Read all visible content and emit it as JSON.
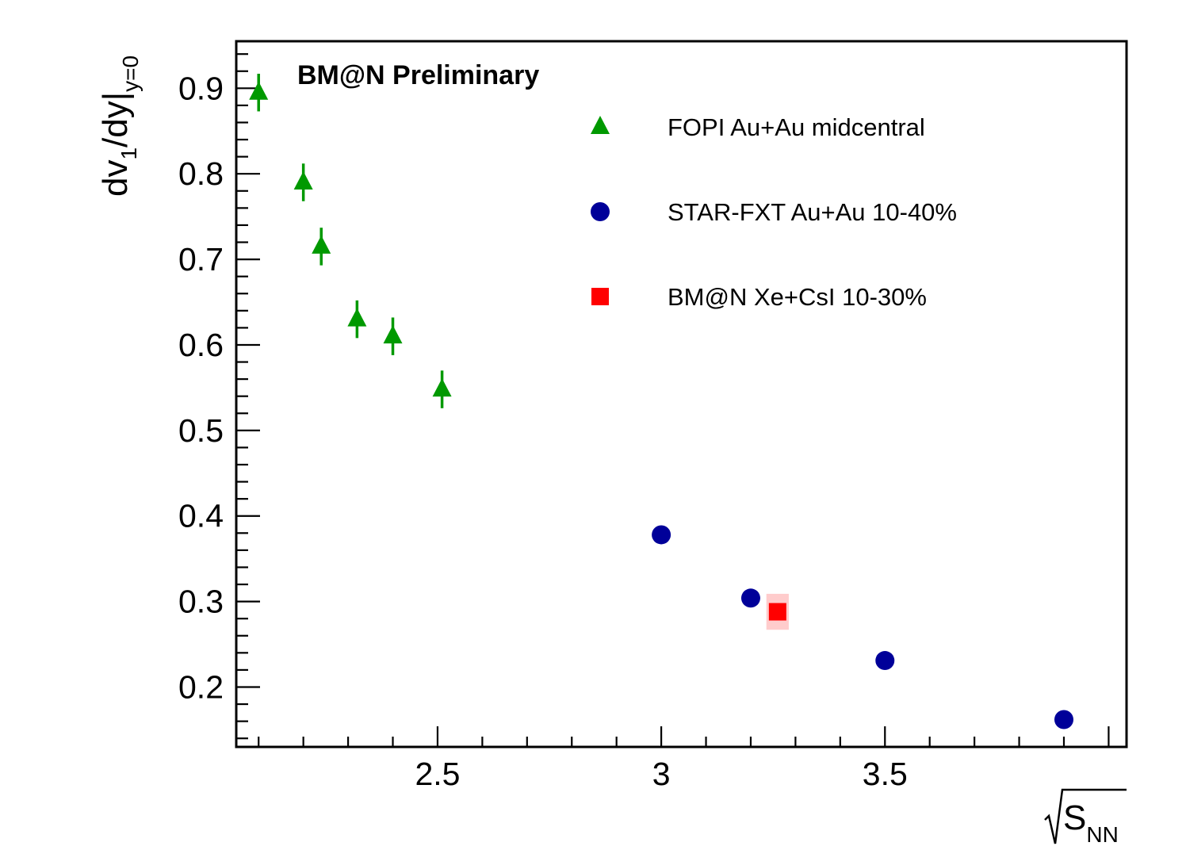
{
  "chart_data": {
    "type": "scatter",
    "xlabel": "S",
    "xlabel_sub": "NN",
    "ylabel": "dv",
    "ylabel_sub1": "1",
    "ylabel_mid": "/dy|",
    "ylabel_sub2": "y=0",
    "annotation": "BM@N Preliminary",
    "xlim": [
      2.05,
      4.04
    ],
    "ylim": [
      0.13,
      0.955
    ],
    "x_ticks": [
      2.5,
      3,
      3.5
    ],
    "x_tick_labels": [
      "2.5",
      "3",
      "3.5"
    ],
    "y_ticks": [
      0.2,
      0.3,
      0.4,
      0.5,
      0.6,
      0.7,
      0.8,
      0.9
    ],
    "y_tick_labels": [
      "0.2",
      "0.3",
      "0.4",
      "0.5",
      "0.6",
      "0.7",
      "0.8",
      "0.9"
    ],
    "grid": false,
    "legend_position": "top-right",
    "series": [
      {
        "name": "FOPI Au+Au midcentral",
        "marker": "triangle",
        "color": "#009900",
        "x": [
          2.1,
          2.2,
          2.24,
          2.32,
          2.4,
          2.51
        ],
        "y": [
          0.895,
          0.79,
          0.715,
          0.63,
          0.61,
          0.548
        ],
        "yerr": [
          0.022,
          0.022,
          0.022,
          0.022,
          0.022,
          0.022
        ]
      },
      {
        "name": "STAR-FXT Au+Au 10-40%",
        "marker": "circle",
        "color": "#000099",
        "x": [
          3.0,
          3.2,
          3.5,
          3.9
        ],
        "y": [
          0.378,
          0.304,
          0.231,
          0.162
        ]
      },
      {
        "name": "BM@N Xe+CsI 10-30%",
        "marker": "square",
        "color": "#ff0000",
        "x": [
          3.26
        ],
        "y": [
          0.288
        ],
        "sys_err": [
          0.021
        ],
        "sys_dx": [
          0.025
        ],
        "sys_color": "#ffcccc"
      }
    ]
  }
}
